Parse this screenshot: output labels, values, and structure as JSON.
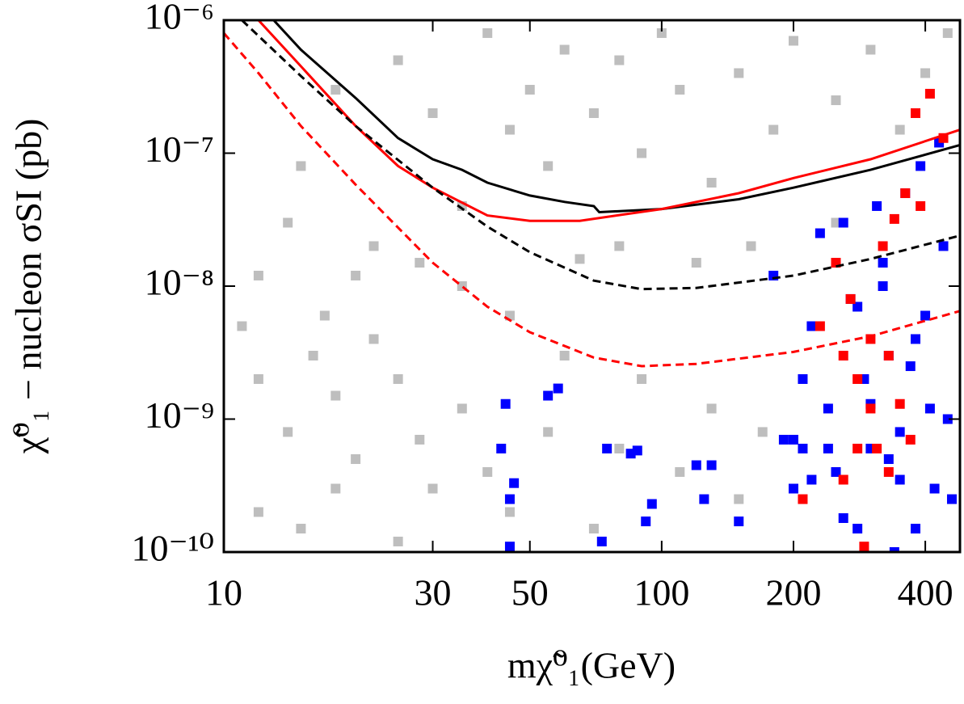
{
  "chart_data": {
    "type": "scatter",
    "xlabel": "mχ̃⁰₁(GeV)",
    "ylabel": "χ̃⁰₁ − nucleon σSI (pb)",
    "xscale": "log",
    "yscale": "log",
    "xlim": [
      10,
      480
    ],
    "ylim": [
      1e-10,
      1e-06
    ],
    "xticks": [
      10,
      30,
      50,
      100,
      200,
      400
    ],
    "yticks": [
      {
        "value": 1e-10,
        "label": "10⁻¹⁰"
      },
      {
        "value": 1e-09,
        "label": "10⁻⁹"
      },
      {
        "value": 1e-08,
        "label": "10⁻⁸"
      },
      {
        "value": 1e-07,
        "label": "10⁻⁷"
      },
      {
        "value": 1e-06,
        "label": "10⁻⁶"
      }
    ],
    "series": [
      {
        "color": "#bebebe",
        "x": [
          11,
          12,
          14,
          16,
          18,
          20,
          22,
          25,
          28,
          30,
          35,
          40,
          45,
          55,
          60,
          70,
          80,
          90,
          110,
          130,
          150,
          170,
          12,
          15,
          18,
          25,
          15,
          18,
          20,
          25,
          30,
          35,
          40,
          45,
          50,
          55,
          60,
          70,
          80,
          90,
          100,
          110,
          130,
          150,
          180,
          200,
          250,
          300,
          350,
          400,
          450,
          22,
          28,
          35,
          45,
          65,
          80,
          120,
          160,
          250,
          14,
          12,
          17
        ],
        "values": [
          5e-09,
          2e-09,
          8e-10,
          3e-09,
          1.5e-09,
          5e-10,
          4e-09,
          2e-09,
          7e-10,
          3e-10,
          1.2e-09,
          4e-10,
          2e-10,
          8e-10,
          3e-09,
          1.5e-10,
          6e-10,
          2e-09,
          4e-10,
          1.2e-09,
          2.5e-10,
          8e-10,
          2e-10,
          1.5e-10,
          3e-10,
          1.2e-10,
          8e-08,
          3e-07,
          1.2e-08,
          5e-07,
          2e-07,
          4e-08,
          8e-07,
          1.5e-07,
          3e-07,
          8e-08,
          6e-07,
          2e-07,
          5e-07,
          1e-07,
          8e-07,
          3e-07,
          6e-08,
          4e-07,
          1.5e-07,
          7e-07,
          2.5e-07,
          6e-07,
          1.5e-07,
          4e-07,
          8e-07,
          2e-08,
          1.5e-08,
          1e-08,
          6e-09,
          1.6e-08,
          2e-08,
          1.5e-08,
          2e-08,
          3e-08,
          3e-08,
          1.2e-08,
          6e-09
        ]
      },
      {
        "color": "#0000ff",
        "x": [
          44,
          43,
          45,
          45,
          46,
          55,
          58,
          75,
          85,
          88,
          73,
          92,
          95,
          120,
          130,
          125,
          150,
          180,
          190,
          200,
          210,
          220,
          230,
          240,
          250,
          260,
          270,
          280,
          290,
          300,
          310,
          320,
          330,
          340,
          350,
          360,
          370,
          380,
          390,
          400,
          410,
          420,
          430,
          440,
          450,
          460,
          240,
          260,
          300,
          330,
          220,
          200,
          350,
          280,
          380,
          320,
          210
        ],
        "values": [
          1.3e-09,
          6e-10,
          2.5e-10,
          1.1e-10,
          3.3e-10,
          1.5e-09,
          1.7e-09,
          6e-10,
          5.5e-10,
          5.8e-10,
          1.2e-10,
          1.7e-10,
          2.3e-10,
          4.5e-10,
          4.5e-10,
          2.5e-10,
          1.7e-10,
          1.2e-08,
          7e-10,
          3e-10,
          2e-09,
          5e-09,
          2.5e-08,
          1.2e-09,
          4e-10,
          3e-08,
          8e-09,
          1.5e-10,
          2e-09,
          6e-10,
          4e-08,
          1.5e-08,
          3e-09,
          1e-10,
          8e-10,
          5e-08,
          2.5e-09,
          1.5e-10,
          8e-08,
          6e-09,
          1.2e-09,
          3e-10,
          1.2e-07,
          2e-08,
          1e-09,
          2.5e-10,
          6e-10,
          1.8e-10,
          1.3e-09,
          5e-10,
          3.5e-10,
          7e-10,
          3.5e-10,
          7e-09,
          4e-09,
          1e-08,
          6e-10
        ]
      },
      {
        "color": "#ff0000",
        "x": [
          210,
          230,
          250,
          260,
          270,
          280,
          290,
          300,
          310,
          320,
          330,
          340,
          350,
          360,
          370,
          380,
          390,
          410,
          440,
          300,
          280,
          260,
          330
        ],
        "values": [
          2.5e-10,
          5e-09,
          1.5e-08,
          3.5e-10,
          8e-09,
          2e-09,
          1.1e-10,
          4e-09,
          6e-10,
          2e-08,
          3e-09,
          3.2e-08,
          1.3e-09,
          5e-08,
          7e-10,
          2e-07,
          4e-08,
          2.8e-07,
          1.3e-07,
          1.2e-09,
          6e-10,
          3e-09,
          4e-10
        ]
      }
    ],
    "lines": [
      {
        "color": "#000000",
        "dashed": false,
        "x": [
          13,
          15,
          20,
          25,
          30,
          35,
          40,
          50,
          60,
          70,
          72,
          100,
          150,
          200,
          300,
          480
        ],
        "values": [
          1e-06,
          6e-07,
          2.6e-07,
          1.3e-07,
          9e-08,
          7.5e-08,
          6e-08,
          4.8e-08,
          4.3e-08,
          4e-08,
          3.6e-08,
          3.8e-08,
          4.5e-08,
          5.5e-08,
          7.5e-08,
          1.15e-07
        ]
      },
      {
        "color": "#ff0000",
        "dashed": false,
        "x": [
          12,
          15,
          20,
          25,
          30,
          40,
          50,
          65,
          100,
          150,
          200,
          300,
          480
        ],
        "values": [
          1e-06,
          4.5e-07,
          1.6e-07,
          8e-08,
          5.5e-08,
          3.4e-08,
          3.1e-08,
          3.1e-08,
          3.8e-08,
          5e-08,
          6.5e-08,
          9e-08,
          1.5e-07
        ]
      },
      {
        "color": "#000000",
        "dashed": true,
        "x": [
          11,
          15,
          20,
          30,
          40,
          50,
          70,
          90,
          120,
          200,
          300,
          480
        ],
        "values": [
          1e-06,
          3.8e-07,
          1.6e-07,
          5.5e-08,
          2.8e-08,
          1.8e-08,
          1.1e-08,
          9.5e-09,
          9.7e-09,
          1.2e-08,
          1.6e-08,
          2.4e-08
        ]
      },
      {
        "color": "#ff0000",
        "dashed": true,
        "x": [
          10,
          12,
          15,
          20,
          30,
          40,
          50,
          70,
          90,
          120,
          200,
          300,
          480
        ],
        "values": [
          8e-07,
          4e-07,
          1.6e-07,
          5.8e-08,
          1.5e-08,
          7e-09,
          4.5e-09,
          2.9e-09,
          2.5e-09,
          2.6e-09,
          3.2e-09,
          4.2e-09,
          6.5e-09
        ]
      }
    ]
  }
}
